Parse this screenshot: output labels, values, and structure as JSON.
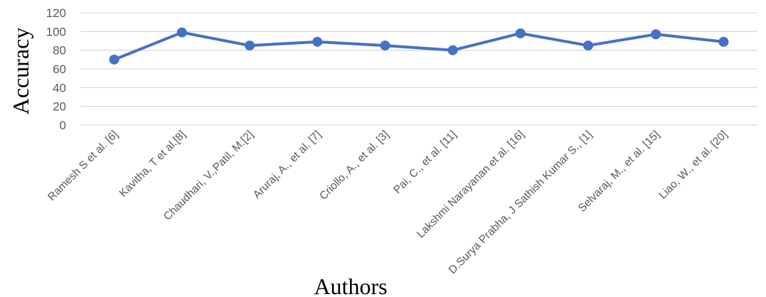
{
  "chart_data": {
    "type": "line",
    "categories": [
      "Ramesh S et al. [6]",
      "Kavitha, T et al.[8]",
      "Chaudhari, V.,Patil, M.[2]",
      "Aruraj, A., et al. [7]",
      "Criollo, A., et al. [3]",
      "Pai, C., et al. [11]",
      "Lakshmi Narayanan et al. [16]",
      "D.Surya Prabha, J Sathish Kumar S., [1]",
      "Selvaraj, M., et al. [15]",
      "Liao, W., et al. [20]"
    ],
    "values": [
      70,
      99,
      85,
      89,
      85,
      80,
      98,
      85,
      97,
      89
    ],
    "xlabel": "Authors",
    "ylabel": "Accuracy",
    "ylim": [
      0,
      120
    ],
    "yticks": [
      0,
      20,
      40,
      60,
      80,
      100,
      120
    ],
    "grid": true,
    "legend": "none",
    "colors": {
      "line": "#4472C4",
      "grid": "#D9D9D9",
      "tick_text": "#595959"
    }
  }
}
